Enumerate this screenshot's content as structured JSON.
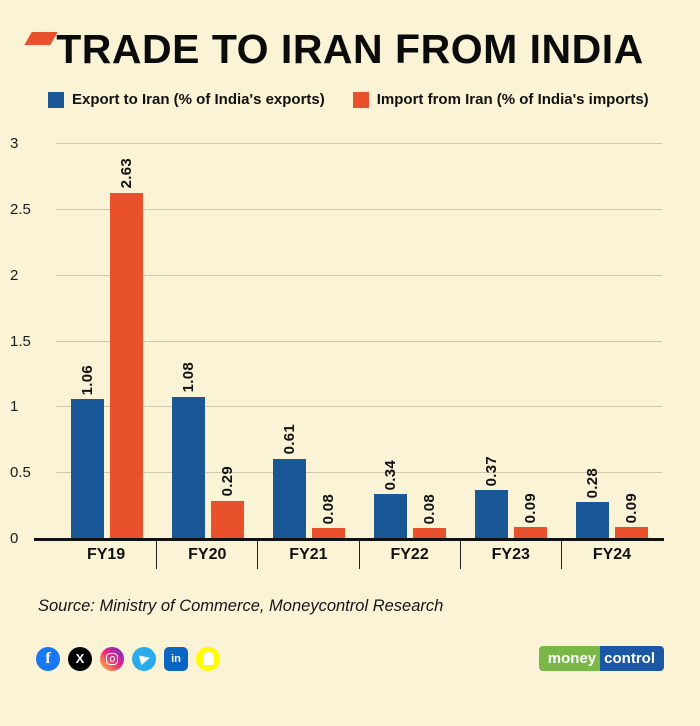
{
  "page": {
    "background_color": "#FAF3D5",
    "accent_color": "#E8512C"
  },
  "header": {
    "title": "TRADE TO IRAN FROM INDIA"
  },
  "chart_data": {
    "type": "bar",
    "title": "TRADE TO IRAN FROM INDIA",
    "categories": [
      "FY19",
      "FY20",
      "FY21",
      "FY22",
      "FY23",
      "FY24"
    ],
    "series": [
      {
        "name": "Export to Iran (% of India's exports)",
        "color": "#1A5796",
        "values": [
          1.06,
          1.08,
          0.61,
          0.34,
          0.37,
          0.28
        ]
      },
      {
        "name": "Import from Iran (% of India's imports)",
        "color": "#E8512C",
        "values": [
          2.63,
          0.29,
          0.08,
          0.08,
          0.09,
          0.09
        ]
      }
    ],
    "xlabel": "",
    "ylabel": "",
    "ylim": [
      0,
      3
    ],
    "yticks": [
      0,
      0.5,
      1,
      1.5,
      2,
      2.5,
      3
    ],
    "grid": true,
    "legend_position": "top",
    "value_labels": "rotated-90"
  },
  "source": {
    "text": "Source: Ministry of Commerce, Moneycontrol Research"
  },
  "footer": {
    "social": [
      {
        "name": "facebook",
        "color": "#1877F2"
      },
      {
        "name": "x",
        "color": "#000000"
      },
      {
        "name": "instagram",
        "colors": [
          "#f9ce34",
          "#ee2a7b",
          "#6228d7"
        ]
      },
      {
        "name": "telegram",
        "color": "#2AABEE"
      },
      {
        "name": "linkedin",
        "color": "#0A66C2"
      },
      {
        "name": "snapchat",
        "color": "#FFFC00"
      }
    ],
    "logo": {
      "money": "money",
      "control": "control",
      "money_color": "#7AB648",
      "control_color": "#1C57A5"
    }
  }
}
